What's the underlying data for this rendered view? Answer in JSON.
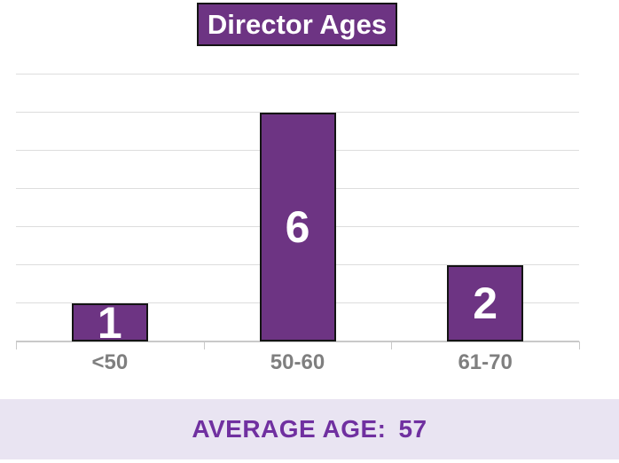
{
  "title": {
    "label": "Director Ages"
  },
  "chart_data": {
    "type": "bar",
    "title": "Director Ages",
    "categories": [
      "<50",
      "50-60",
      "61-70"
    ],
    "values": [
      1,
      6,
      2
    ],
    "bar_labels": [
      "1",
      "6",
      "2"
    ],
    "xlabel": "",
    "ylabel": "",
    "ylim": [
      0,
      7
    ],
    "gridline_count": 8,
    "grid": true,
    "legend_position": "none",
    "annotation": "AVERAGE AGE: 57"
  },
  "footer": {
    "label": "AVERAGE AGE:",
    "value": "57"
  },
  "colors": {
    "bar_fill": "#6d3483",
    "bar_border": "#141414",
    "title_text": "#ffffff",
    "gridline": "#dddddd",
    "axis": "#c9c9c9",
    "category_text": "#7f7f7f",
    "footer_bg": "#e9e4f2",
    "footer_text": "#7030a0"
  }
}
